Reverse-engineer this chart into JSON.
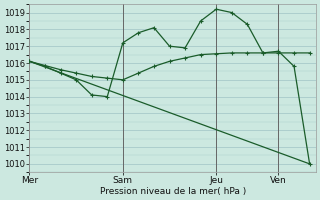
{
  "background_color": "#cce8e0",
  "grid_color": "#aacccc",
  "line_color": "#1a5c2a",
  "x_tick_labels": [
    "Mer",
    "Sam",
    "Jeu",
    "Ven"
  ],
  "x_tick_positions": [
    0,
    3,
    6,
    8
  ],
  "xlabel": "Pression niveau de la mer( hPa )",
  "ylim": [
    1009.5,
    1019.5
  ],
  "yticks": [
    1010,
    1011,
    1012,
    1013,
    1014,
    1015,
    1016,
    1017,
    1018,
    1019
  ],
  "line1_x": [
    0,
    0.5,
    1.0,
    1.5,
    2.0,
    2.5,
    3.0,
    3.5,
    4.0,
    4.5,
    5.0,
    5.5,
    6.0,
    6.5,
    7.0,
    7.5,
    8.0,
    8.5,
    9.0
  ],
  "line1_y": [
    1016.1,
    1015.8,
    1015.4,
    1015.0,
    1014.1,
    1014.0,
    1017.2,
    1017.8,
    1018.1,
    1017.0,
    1016.9,
    1018.5,
    1019.2,
    1019.0,
    1018.3,
    1016.6,
    1016.7,
    1015.8,
    1010.0
  ],
  "line2_x": [
    0,
    0.5,
    1.0,
    1.5,
    2.0,
    2.5,
    3.0,
    3.5,
    4.0,
    4.5,
    5.0,
    5.5,
    6.0,
    6.5,
    7.0,
    7.5,
    8.0,
    8.5,
    9.0
  ],
  "line2_y": [
    1016.1,
    1015.85,
    1015.6,
    1015.4,
    1015.2,
    1015.1,
    1015.0,
    1015.4,
    1015.8,
    1016.1,
    1016.3,
    1016.5,
    1016.55,
    1016.6,
    1016.6,
    1016.6,
    1016.6,
    1016.6,
    1016.6
  ],
  "line3_x": [
    0,
    9.0
  ],
  "line3_y": [
    1016.1,
    1010.0
  ],
  "vline_positions": [
    0,
    3,
    6,
    8
  ],
  "xlim": [
    0,
    9.2
  ]
}
